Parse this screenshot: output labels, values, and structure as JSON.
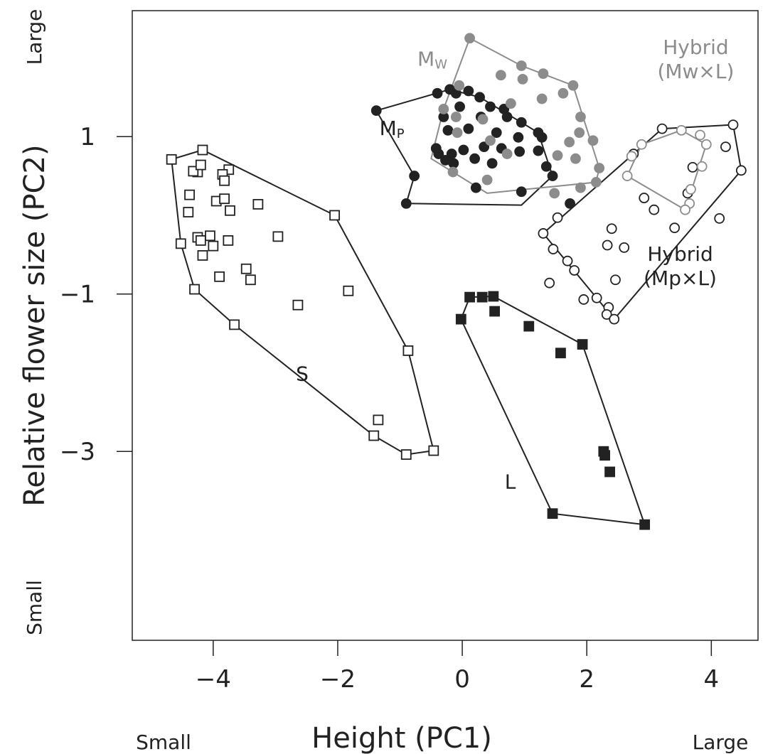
{
  "chart_data": {
    "type": "scatter",
    "xlabel": "Height (PC1)",
    "ylabel": "Relative flower size (PC2)",
    "x_low_label": "Small",
    "x_high_label": "Large",
    "y_low_label": "Small",
    "y_high_label": "Large",
    "xlim": [
      -5.3,
      4.75
    ],
    "ylim": [
      -5.4,
      2.6
    ],
    "x_ticks": [
      -4,
      -2,
      0,
      2,
      4
    ],
    "x_tick_labels": [
      "−4",
      "−2",
      "0",
      "2",
      "4"
    ],
    "y_ticks": [
      1,
      -1,
      -3
    ],
    "y_tick_labels": [
      "1",
      "−1",
      "−3"
    ],
    "grid": false,
    "colors": {
      "dark": "#222222",
      "gray": "#8c8c8c",
      "open_fill": "#ffffff"
    },
    "series": [
      {
        "label": "S",
        "marker": "open-square",
        "points": [
          [
            -4.67,
            0.71
          ],
          [
            -4.17,
            0.83
          ],
          [
            -4.25,
            0.55
          ],
          [
            -4.32,
            0.56
          ],
          [
            -4.2,
            0.64
          ],
          [
            -3.75,
            0.58
          ],
          [
            -3.85,
            0.52
          ],
          [
            -3.82,
            0.44
          ],
          [
            -4.38,
            0.26
          ],
          [
            -3.95,
            0.18
          ],
          [
            -3.82,
            0.21
          ],
          [
            -4.4,
            0.04
          ],
          [
            -3.28,
            0.14
          ],
          [
            -3.73,
            0.06
          ],
          [
            -4.25,
            -0.28
          ],
          [
            -4.05,
            -0.26
          ],
          [
            -4.2,
            -0.32
          ],
          [
            -4.0,
            -0.39
          ],
          [
            -4.52,
            -0.36
          ],
          [
            -4.17,
            -0.51
          ],
          [
            -3.76,
            -0.32
          ],
          [
            -2.96,
            -0.27
          ],
          [
            -3.47,
            -0.68
          ],
          [
            -3.4,
            -0.82
          ],
          [
            -3.9,
            -0.78
          ],
          [
            -4.3,
            -0.94
          ],
          [
            -2.64,
            -1.14
          ],
          [
            -1.83,
            -0.96
          ],
          [
            -2.05,
            0.0
          ],
          [
            -3.66,
            -1.39
          ],
          [
            -0.87,
            -1.72
          ],
          [
            -1.35,
            -2.6
          ],
          [
            -1.42,
            -2.8
          ],
          [
            -0.9,
            -3.04
          ],
          [
            -0.46,
            -2.99
          ]
        ],
        "hull": [
          [
            -4.67,
            0.71
          ],
          [
            -4.17,
            0.83
          ],
          [
            -2.05,
            0.0
          ],
          [
            -0.87,
            -1.72
          ],
          [
            -0.46,
            -2.99
          ],
          [
            -0.9,
            -3.04
          ],
          [
            -1.42,
            -2.8
          ],
          [
            -3.66,
            -1.39
          ],
          [
            -4.3,
            -0.94
          ],
          [
            -4.52,
            -0.36
          ]
        ]
      },
      {
        "label": "L",
        "marker": "filled-square",
        "points": [
          [
            0.12,
            -1.04
          ],
          [
            0.32,
            -1.04
          ],
          [
            0.5,
            -1.03
          ],
          [
            0.52,
            -1.22
          ],
          [
            -0.02,
            -1.32
          ],
          [
            1.07,
            -1.41
          ],
          [
            1.58,
            -1.75
          ],
          [
            1.93,
            -1.64
          ],
          [
            2.27,
            -3.0
          ],
          [
            2.29,
            -3.05
          ],
          [
            2.37,
            -3.26
          ],
          [
            1.45,
            -3.79
          ],
          [
            2.93,
            -3.93
          ]
        ],
        "hull": [
          [
            0.12,
            -1.04
          ],
          [
            0.5,
            -1.03
          ],
          [
            1.93,
            -1.64
          ],
          [
            2.93,
            -3.93
          ],
          [
            1.45,
            -3.79
          ],
          [
            -0.02,
            -1.32
          ]
        ]
      },
      {
        "label": "Mp",
        "marker": "filled-circle",
        "points": [
          [
            -1.38,
            1.33
          ],
          [
            -0.4,
            1.55
          ],
          [
            -0.2,
            1.6
          ],
          [
            -0.1,
            1.55
          ],
          [
            0.1,
            1.58
          ],
          [
            0.28,
            1.5
          ],
          [
            0.45,
            1.38
          ],
          [
            0.67,
            1.35
          ],
          [
            -0.3,
            1.25
          ],
          [
            -0.04,
            1.38
          ],
          [
            0.3,
            1.25
          ],
          [
            0.72,
            1.25
          ],
          [
            0.95,
            1.18
          ],
          [
            1.22,
            1.05
          ],
          [
            -0.23,
            1.08
          ],
          [
            0.1,
            1.1
          ],
          [
            0.55,
            1.05
          ],
          [
            0.9,
            0.99
          ],
          [
            1.28,
            0.99
          ],
          [
            -0.42,
            0.85
          ],
          [
            -0.17,
            0.78
          ],
          [
            0.02,
            0.83
          ],
          [
            0.35,
            0.87
          ],
          [
            0.63,
            0.85
          ],
          [
            0.92,
            0.81
          ],
          [
            1.22,
            0.82
          ],
          [
            -0.38,
            0.78
          ],
          [
            -0.27,
            0.7
          ],
          [
            -0.14,
            0.66
          ],
          [
            0.2,
            0.72
          ],
          [
            0.48,
            0.66
          ],
          [
            1.35,
            0.62
          ],
          [
            -0.77,
            0.5
          ],
          [
            0.22,
            0.35
          ],
          [
            -0.9,
            0.15
          ],
          [
            0.95,
            0.3
          ],
          [
            1.45,
            0.5
          ],
          [
            1.73,
            0.15
          ]
        ],
        "hull": [
          [
            -1.38,
            1.33
          ],
          [
            -0.2,
            1.6
          ],
          [
            0.28,
            1.5
          ],
          [
            1.22,
            1.05
          ],
          [
            1.45,
            0.5
          ],
          [
            0.95,
            0.13
          ],
          [
            -0.9,
            0.15
          ],
          [
            -0.77,
            0.5
          ]
        ]
      },
      {
        "label": "Mw",
        "marker": "gray-circle",
        "points": [
          [
            0.12,
            2.25
          ],
          [
            0.95,
            1.9
          ],
          [
            1.3,
            1.8
          ],
          [
            0.62,
            1.78
          ],
          [
            0.97,
            1.73
          ],
          [
            1.78,
            1.65
          ],
          [
            -0.05,
            1.65
          ],
          [
            1.28,
            1.48
          ],
          [
            1.62,
            1.55
          ],
          [
            0.78,
            1.42
          ],
          [
            -0.3,
            1.35
          ],
          [
            -0.1,
            1.25
          ],
          [
            1.9,
            1.25
          ],
          [
            0.33,
            1.22
          ],
          [
            1.88,
            1.05
          ],
          [
            -0.08,
            1.05
          ],
          [
            1.72,
            0.93
          ],
          [
            0.45,
            0.95
          ],
          [
            2.1,
            0.95
          ],
          [
            0.72,
            0.78
          ],
          [
            1.53,
            0.76
          ],
          [
            1.82,
            0.72
          ],
          [
            -0.15,
            0.55
          ],
          [
            2.2,
            0.6
          ],
          [
            2.15,
            0.42
          ],
          [
            1.9,
            0.35
          ],
          [
            0.4,
            0.45
          ],
          [
            1.48,
            0.28
          ]
        ],
        "hull": [
          [
            -0.3,
            1.35
          ],
          [
            0.12,
            2.25
          ],
          [
            0.95,
            1.9
          ],
          [
            1.78,
            1.65
          ],
          [
            2.2,
            0.6
          ],
          [
            2.15,
            0.42
          ],
          [
            0.4,
            0.28
          ],
          [
            -0.5,
            0.72
          ]
        ]
      },
      {
        "label": "Hybrid (Mp×L)",
        "marker": "open-circle",
        "points": [
          [
            3.21,
            1.1
          ],
          [
            2.75,
            0.78
          ],
          [
            4.35,
            1.15
          ],
          [
            4.23,
            0.87
          ],
          [
            4.48,
            0.57
          ],
          [
            3.7,
            0.61
          ],
          [
            3.62,
            0.28
          ],
          [
            2.92,
            0.22
          ],
          [
            3.08,
            0.07
          ],
          [
            3.41,
            -0.16
          ],
          [
            4.13,
            -0.04
          ],
          [
            2.4,
            -0.17
          ],
          [
            2.33,
            -0.38
          ],
          [
            2.6,
            -0.41
          ],
          [
            1.53,
            -0.03
          ],
          [
            1.3,
            -0.23
          ],
          [
            1.46,
            -0.43
          ],
          [
            1.69,
            -0.58
          ],
          [
            1.8,
            -0.7
          ],
          [
            2.46,
            -0.82
          ],
          [
            1.4,
            -0.86
          ],
          [
            2.16,
            -1.05
          ],
          [
            1.95,
            -1.07
          ],
          [
            2.35,
            -1.17
          ],
          [
            2.32,
            -1.26
          ],
          [
            2.44,
            -1.32
          ]
        ],
        "hull": [
          [
            2.75,
            0.78
          ],
          [
            3.21,
            1.1
          ],
          [
            4.35,
            1.15
          ],
          [
            4.48,
            0.57
          ],
          [
            2.44,
            -1.32
          ],
          [
            1.3,
            -0.23
          ]
        ]
      },
      {
        "label": "Hybrid (Mw×L)",
        "marker": "gray-open-circle",
        "points": [
          [
            2.88,
            0.9
          ],
          [
            2.72,
            0.75
          ],
          [
            2.65,
            0.5
          ],
          [
            3.52,
            1.08
          ],
          [
            3.82,
            1.02
          ],
          [
            3.92,
            0.9
          ],
          [
            3.85,
            0.62
          ],
          [
            3.67,
            0.33
          ],
          [
            3.65,
            0.15
          ],
          [
            3.58,
            0.07
          ]
        ],
        "hull": [
          [
            2.65,
            0.5
          ],
          [
            2.88,
            0.9
          ],
          [
            3.52,
            1.08
          ],
          [
            3.92,
            0.9
          ],
          [
            3.58,
            0.07
          ]
        ]
      }
    ],
    "annotations": [
      {
        "text": "S",
        "x": -2.57,
        "y": -2.1
      },
      {
        "text": "L",
        "x": 0.77,
        "y": -3.47
      },
      {
        "text": "M",
        "sub": "P",
        "x": -1.13,
        "y": 1.02,
        "color": "dark"
      },
      {
        "text": "M",
        "sub": "W",
        "x": -0.48,
        "y": 1.9,
        "color": "gray"
      },
      {
        "text": "Hybrid",
        "line2": "(Mw×L)",
        "x": 3.75,
        "y": 2.05,
        "color": "gray"
      },
      {
        "text": "Hybrid",
        "line2": "(Mp×L)",
        "x": 3.5,
        "y": -0.58,
        "color": "dark"
      }
    ]
  }
}
